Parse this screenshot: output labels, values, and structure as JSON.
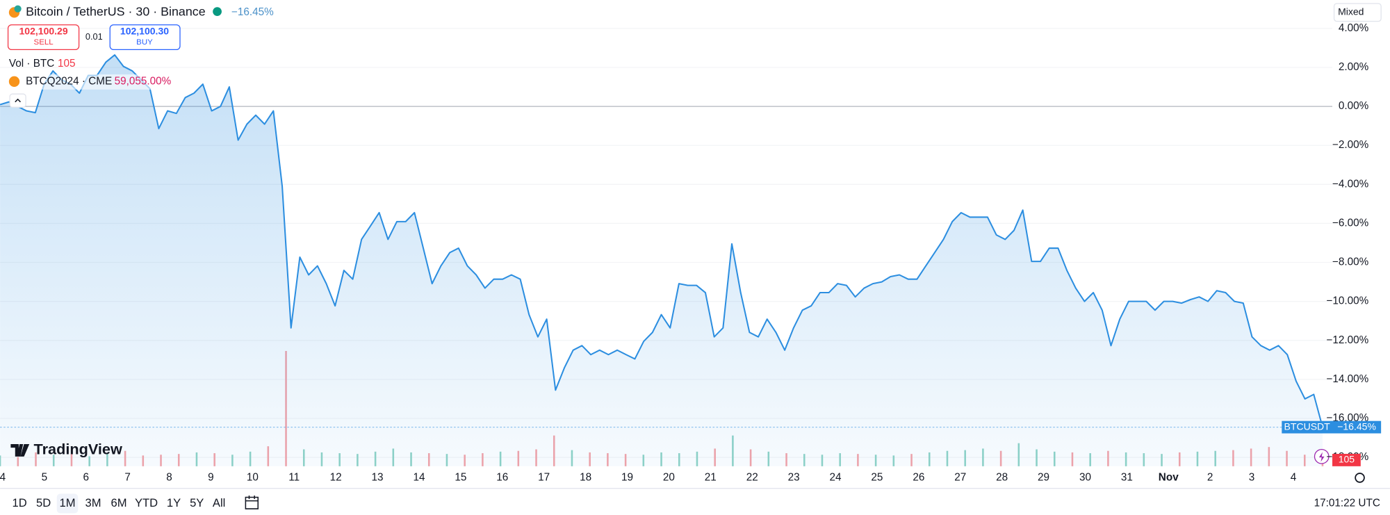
{
  "header": {
    "title": "Bitcoin / TetherUS · 30 · Binance",
    "change": "−16.45%",
    "mode": "Mixed"
  },
  "trade": {
    "sell_price": "102,100.29",
    "sell": "SELL",
    "spread": "0.01",
    "buy_price": "102,100.30",
    "buy": "BUY"
  },
  "indicators": {
    "volume_name": "Vol · BTC",
    "volume_value": "105",
    "compare_name": "BTCQ2024 · CME",
    "compare_value": "59,055.00%"
  },
  "logo": "TradingView",
  "ranges": {
    "items": [
      "1D",
      "5D",
      "1M",
      "3M",
      "6M",
      "YTD",
      "1Y",
      "5Y",
      "All"
    ],
    "active": "1M"
  },
  "clock": "17:01:22 UTC",
  "chart_data": {
    "type": "line",
    "grid": true,
    "ylim": [
      -18.5,
      4.32
    ],
    "yticks": [
      {
        "value": 4,
        "label": "4.00%"
      },
      {
        "value": 2,
        "label": "2.00%"
      },
      {
        "value": 0,
        "label": "0.00%"
      },
      {
        "value": -2,
        "label": "−2.00%"
      },
      {
        "value": -4,
        "label": "−4.00%"
      },
      {
        "value": -6,
        "label": "−6.00%"
      },
      {
        "value": -8,
        "label": "−8.00%"
      },
      {
        "value": -10,
        "label": "−10.00%"
      },
      {
        "value": -12,
        "label": "−12.00%"
      },
      {
        "value": -14,
        "label": "−14.00%"
      },
      {
        "value": -16,
        "label": "−16.00%"
      },
      {
        "value": -18,
        "label": "−18.00%"
      }
    ],
    "x_axis_labels": [
      "4",
      "5",
      "6",
      "7",
      "8",
      "9",
      "10",
      "11",
      "12",
      "13",
      "14",
      "15",
      "16",
      "17",
      "18",
      "19",
      "20",
      "21",
      "22",
      "23",
      "24",
      "25",
      "26",
      "27",
      "28",
      "29",
      "30",
      "31",
      "Nov",
      "2",
      "3",
      "4"
    ],
    "series": [
      {
        "name": "BTCUSDT",
        "color": "#2c8ee0",
        "last_label": "−16.45%",
        "values": [
          0.09,
          0.23,
          0,
          -0.23,
          -0.32,
          1.14,
          1.82,
          1.36,
          1.14,
          0.68,
          1.59,
          1.59,
          2.27,
          2.64,
          2.05,
          1.82,
          1.36,
          0.91,
          -1.14,
          -0.23,
          -0.36,
          0.45,
          0.68,
          1.14,
          -0.23,
          0,
          1.0,
          -1.73,
          -0.91,
          -0.45,
          -0.91,
          -0.23,
          -4.09,
          -11.36,
          -7.73,
          -8.64,
          -8.18,
          -9.09,
          -10.23,
          -8.41,
          -8.86,
          -6.82,
          -6.14,
          -5.45,
          -6.82,
          -5.91,
          -5.91,
          -5.45,
          -7.27,
          -9.09,
          -8.18,
          -7.5,
          -7.27,
          -8.18,
          -8.64,
          -9.32,
          -8.86,
          -8.86,
          -8.64,
          -8.86,
          -10.68,
          -11.82,
          -10.91,
          -14.55,
          -13.41,
          -12.5,
          -12.27,
          -12.73,
          -12.5,
          -12.73,
          -12.5,
          -12.73,
          -12.95,
          -12.05,
          -11.59,
          -10.68,
          -11.36,
          -9.09,
          -9.18,
          -9.18,
          -9.55,
          -11.82,
          -11.36,
          -7.05,
          -9.55,
          -11.59,
          -11.82,
          -10.91,
          -11.59,
          -12.5,
          -11.36,
          -10.45,
          -10.23,
          -9.55,
          -9.55,
          -9.09,
          -9.18,
          -9.77,
          -9.32,
          -9.09,
          -9.0,
          -8.73,
          -8.64,
          -8.86,
          -8.86,
          -8.18,
          -7.5,
          -6.82,
          -5.91,
          -5.45,
          -5.68,
          -5.68,
          -5.68,
          -6.59,
          -6.82,
          -6.36,
          -5.32,
          -7.95,
          -7.95,
          -7.27,
          -7.27,
          -8.41,
          -9.32,
          -10.0,
          -9.55,
          -10.45,
          -12.27,
          -10.91,
          -10.0,
          -10.0,
          -10.0,
          -10.45,
          -10.0,
          -10.0,
          -10.09,
          -9.91,
          -9.77,
          -10.0,
          -9.45,
          -9.55,
          -10.0,
          -10.09,
          -11.82,
          -12.27,
          -12.5,
          -12.27,
          -12.73,
          -14.09,
          -15.0,
          -14.77,
          -16.45
        ]
      }
    ],
    "volume": [
      140,
      120,
      180,
      150,
      160,
      130,
      170,
      200,
      140,
      150,
      160,
      180,
      170,
      150,
      190,
      260,
      1500,
      220,
      180,
      170,
      160,
      190,
      230,
      180,
      170,
      160,
      150,
      170,
      190,
      200,
      220,
      400,
      210,
      180,
      170,
      160,
      150,
      180,
      170,
      190,
      230,
      400,
      220,
      190,
      170,
      160,
      150,
      170,
      160,
      150,
      140,
      160,
      180,
      200,
      210,
      230,
      200,
      300,
      220,
      190,
      180,
      170,
      200,
      180,
      170,
      160,
      180,
      190,
      200,
      210,
      230,
      250,
      200,
      150,
      105
    ]
  }
}
